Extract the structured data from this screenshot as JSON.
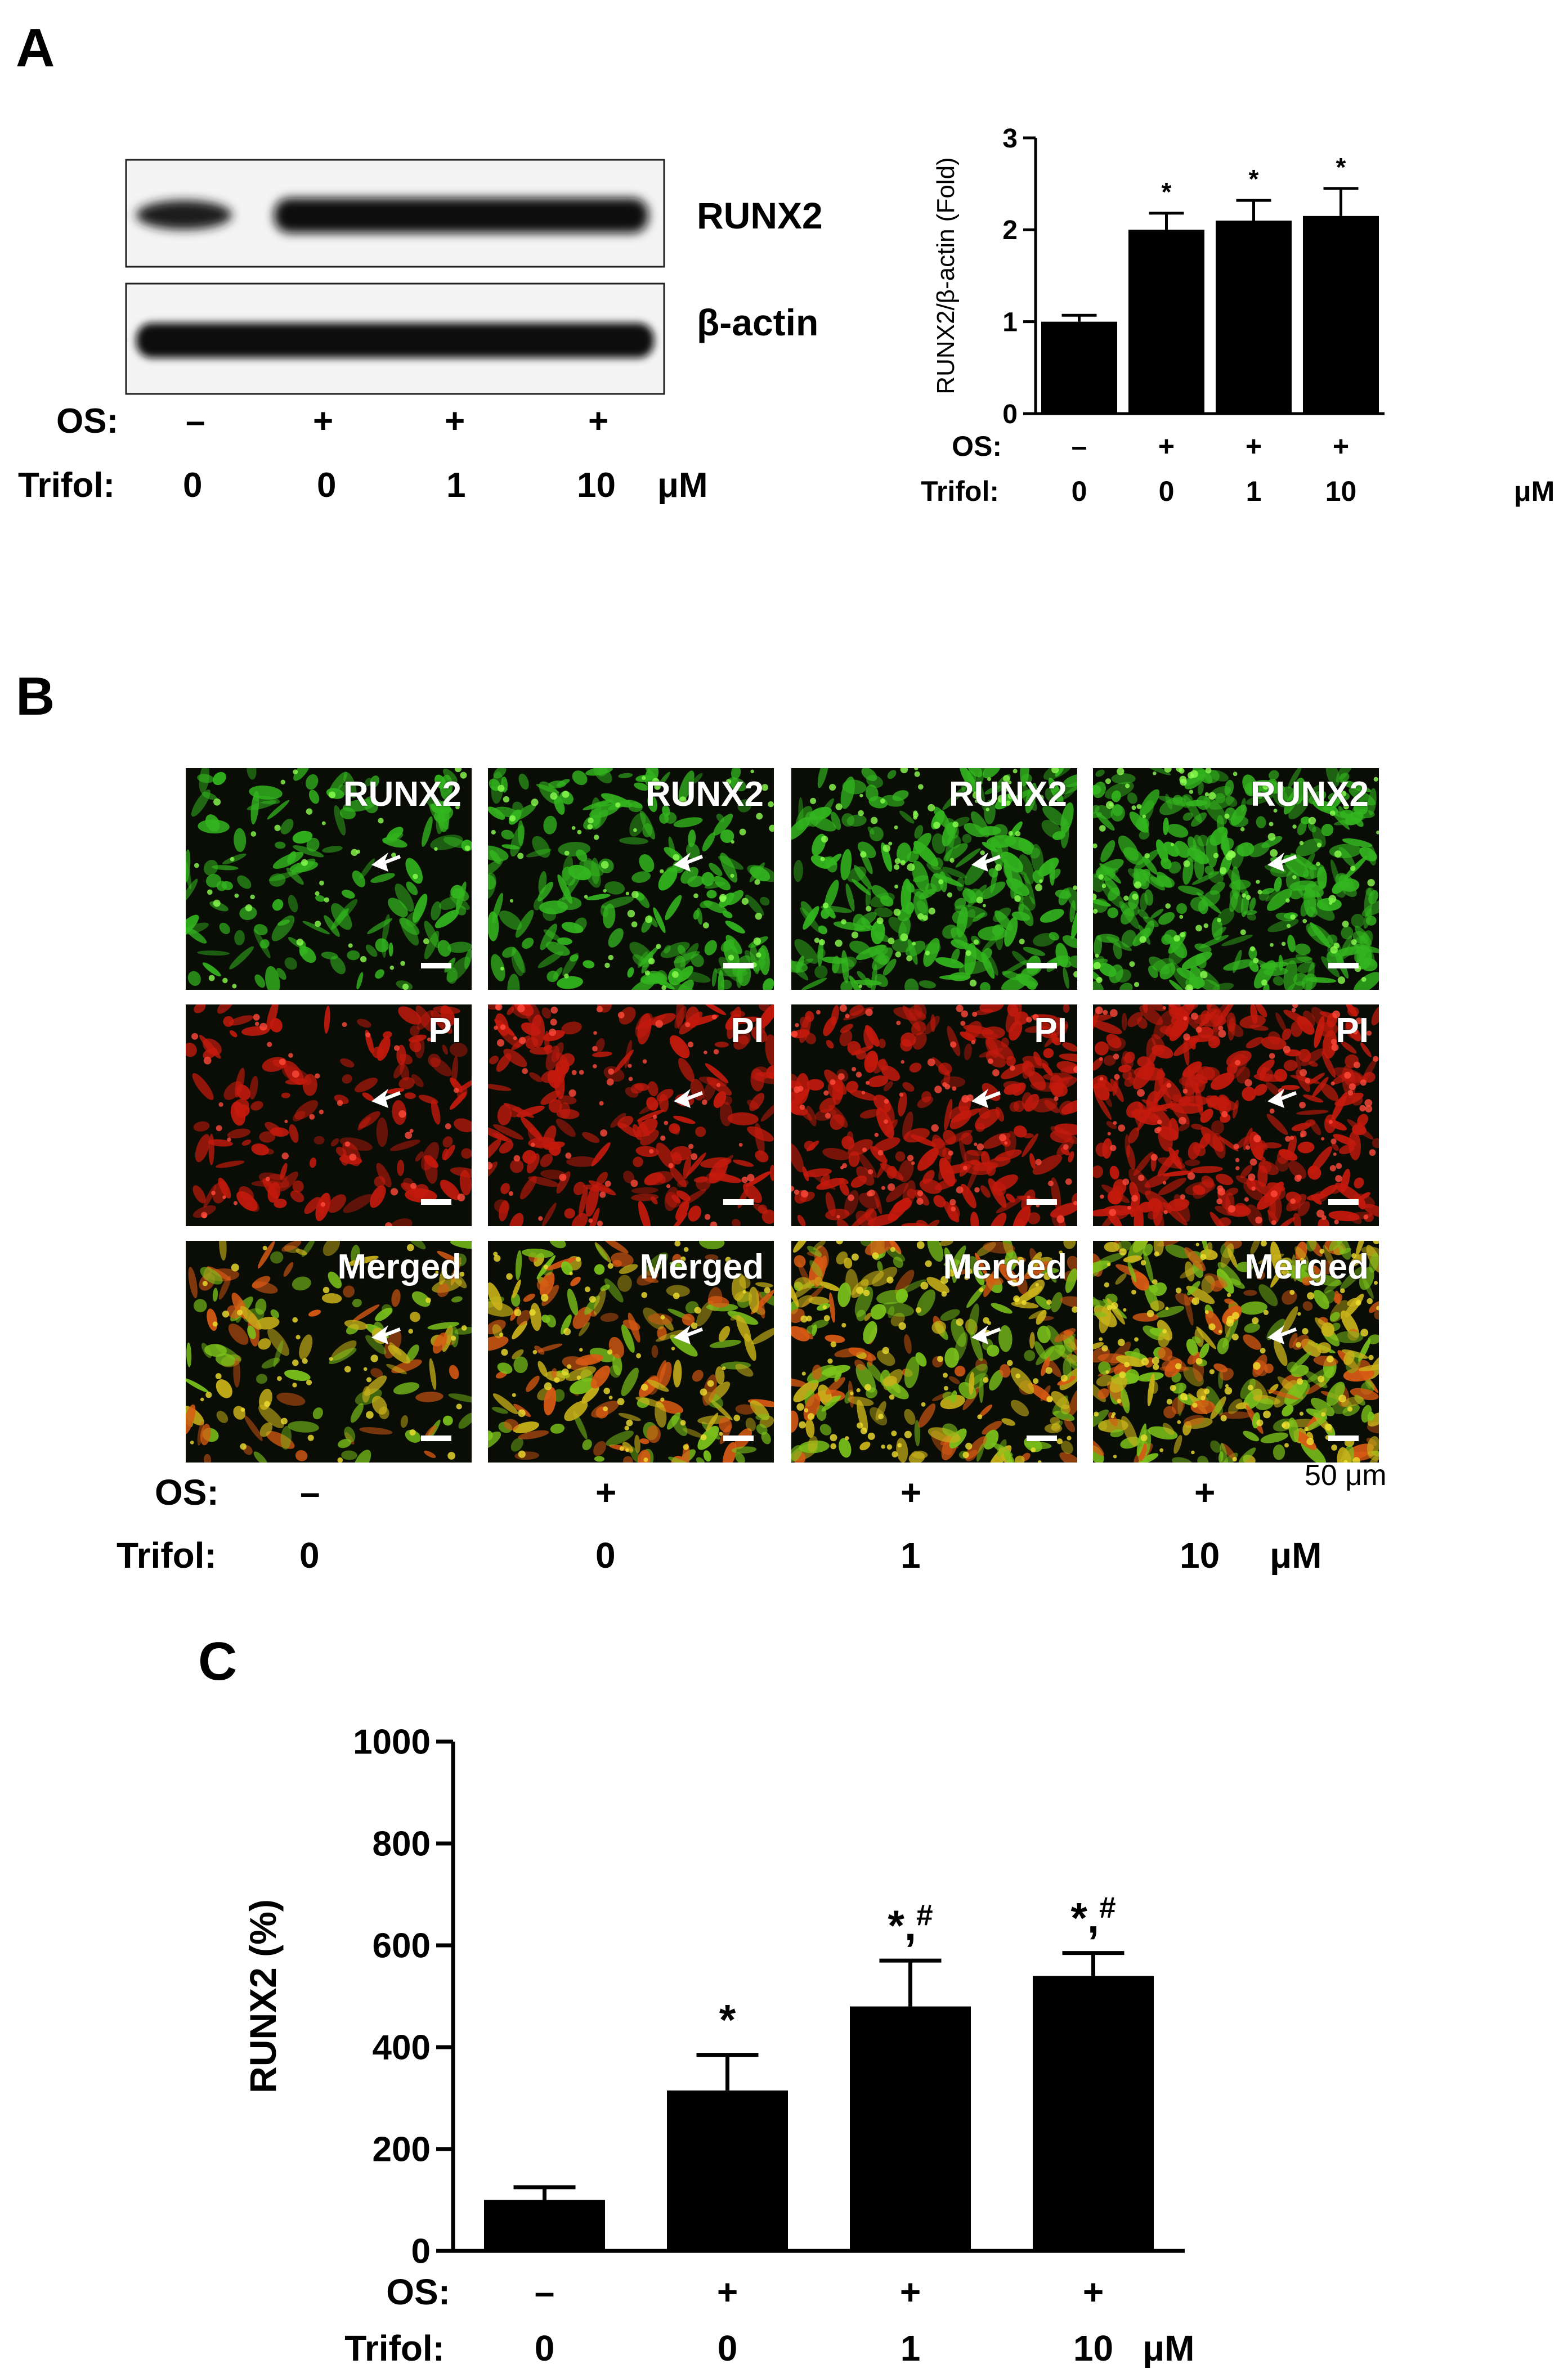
{
  "panels": {
    "a": "A",
    "b": "B",
    "c": "C"
  },
  "conditions": {
    "os_label": "OS:",
    "trifol_label": "Trifol:",
    "os": [
      "–",
      "+",
      "+",
      "+"
    ],
    "trifol": [
      "0",
      "0",
      "1",
      "10"
    ],
    "unit": "μM"
  },
  "blot": {
    "bands": [
      "RUNX2",
      "β-actin"
    ]
  },
  "micrographs": {
    "rows": [
      "RUNX2",
      "PI",
      "Merged"
    ],
    "scale_bar": "50 μm",
    "colors": {
      "green": "#33b51f",
      "red": "#c41a0d",
      "merged": "#a8a51c"
    }
  },
  "chart_data": [
    {
      "id": "panel-A-bar",
      "type": "bar",
      "categories": [
        "OS – / Trifol 0",
        "OS + / Trifol 0",
        "OS + / Trifol 1",
        "OS + / Trifol 10"
      ],
      "values": [
        1.0,
        2.0,
        2.1,
        2.15
      ],
      "errors": [
        0.07,
        0.18,
        0.22,
        0.3
      ],
      "annotations": [
        "",
        "*",
        "*",
        "*"
      ],
      "ylabel": "RUNX2/β-actin (Fold)",
      "ylim": [
        0,
        3
      ],
      "yticks": [
        0,
        1,
        2,
        3
      ],
      "color": "#000000"
    },
    {
      "id": "panel-C-bar",
      "type": "bar",
      "categories": [
        "OS – / Trifol 0",
        "OS + / Trifol 0",
        "OS + / Trifol 1",
        "OS + / Trifol 10"
      ],
      "values": [
        100,
        315,
        480,
        540
      ],
      "errors": [
        25,
        70,
        90,
        45
      ],
      "annotations": [
        "",
        "*",
        "*,#",
        "*,#"
      ],
      "ylabel": "RUNX2 (%)",
      "ylim": [
        0,
        1000
      ],
      "yticks": [
        0,
        200,
        400,
        600,
        800,
        1000
      ],
      "color": "#000000"
    }
  ]
}
